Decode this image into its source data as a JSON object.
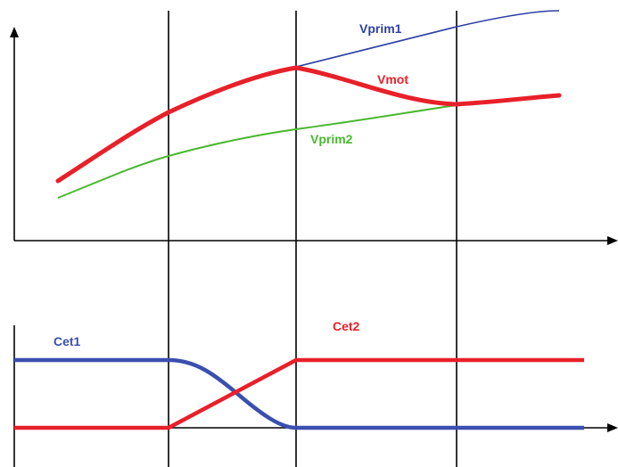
{
  "labels": {
    "vprim1": "Vprim1",
    "vmot": "Vmot",
    "vprim2": "Vprim2",
    "cet1": "Cet1",
    "cet2": "Cet2"
  },
  "colors": {
    "axis": "#000000",
    "vprim1": "#2d3fa6",
    "vmot": "#e8202a",
    "vprim2": "#49b82e",
    "cet1": "#3a4faf",
    "cet2": "#e8202a"
  }
}
